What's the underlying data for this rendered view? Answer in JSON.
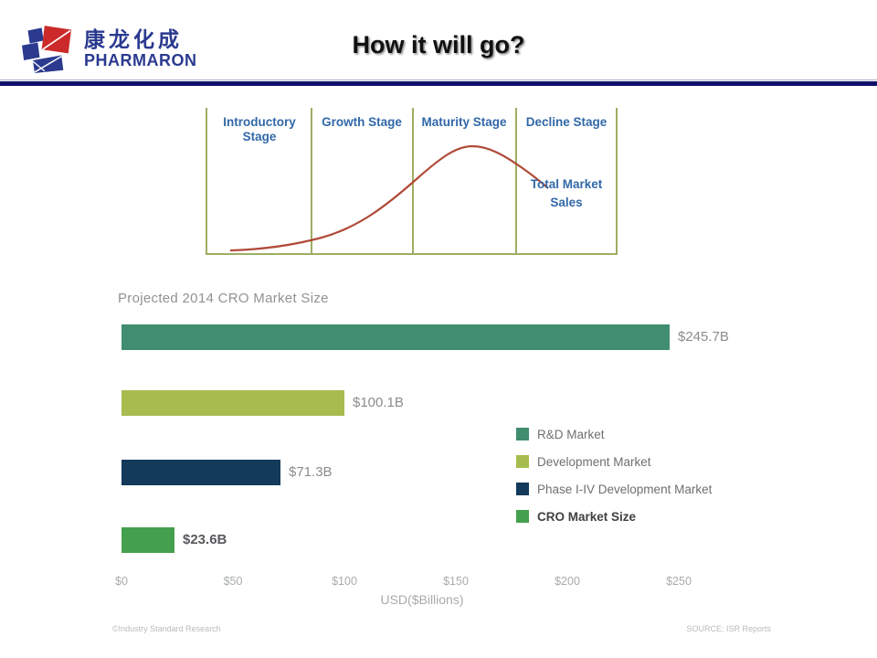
{
  "header": {
    "logo_chinese": "康龙化成",
    "logo_name": "PHARMARON",
    "logo_navy": "#2b3a8f",
    "logo_red": "#cc2a2a",
    "title": "How it will go?"
  },
  "lifecycle": {
    "stages": [
      "Introductory Stage",
      "Growth Stage",
      "Maturity Stage",
      "Decline Stage"
    ],
    "curve_label": "Total Market Sales",
    "curve_color": "#b04a38",
    "border_color": "#9dae62",
    "label_color": "#3168a8"
  },
  "chart_data": {
    "type": "bar",
    "orientation": "horizontal",
    "title": "Projected 2014 CRO Market Size",
    "categories": [
      "R&D Market",
      "Development Market",
      "Phase I-IV Development Market",
      "CRO Market Size"
    ],
    "values": [
      245.7,
      100.1,
      71.3,
      23.6
    ],
    "value_labels": [
      "$245.7B",
      "$100.1B",
      "$71.3B",
      "$23.6B"
    ],
    "bar_colors": [
      "#418d6f",
      "#a6bc4f",
      "#13395b",
      "#44a04d"
    ],
    "xlim": [
      0,
      250
    ],
    "x_tick_values": [
      0,
      50,
      100,
      150,
      200,
      250
    ],
    "x_tick_labels": [
      "$0",
      "$50",
      "$100",
      "$150",
      "$200",
      "$250"
    ],
    "xlabel": "USD($Billions)",
    "grid": false,
    "legend_position": "right",
    "emphasized_series": "CRO Market Size"
  },
  "footer": {
    "left": "©Industry Standard Research",
    "right": "SOURCE: ISR Reports"
  }
}
